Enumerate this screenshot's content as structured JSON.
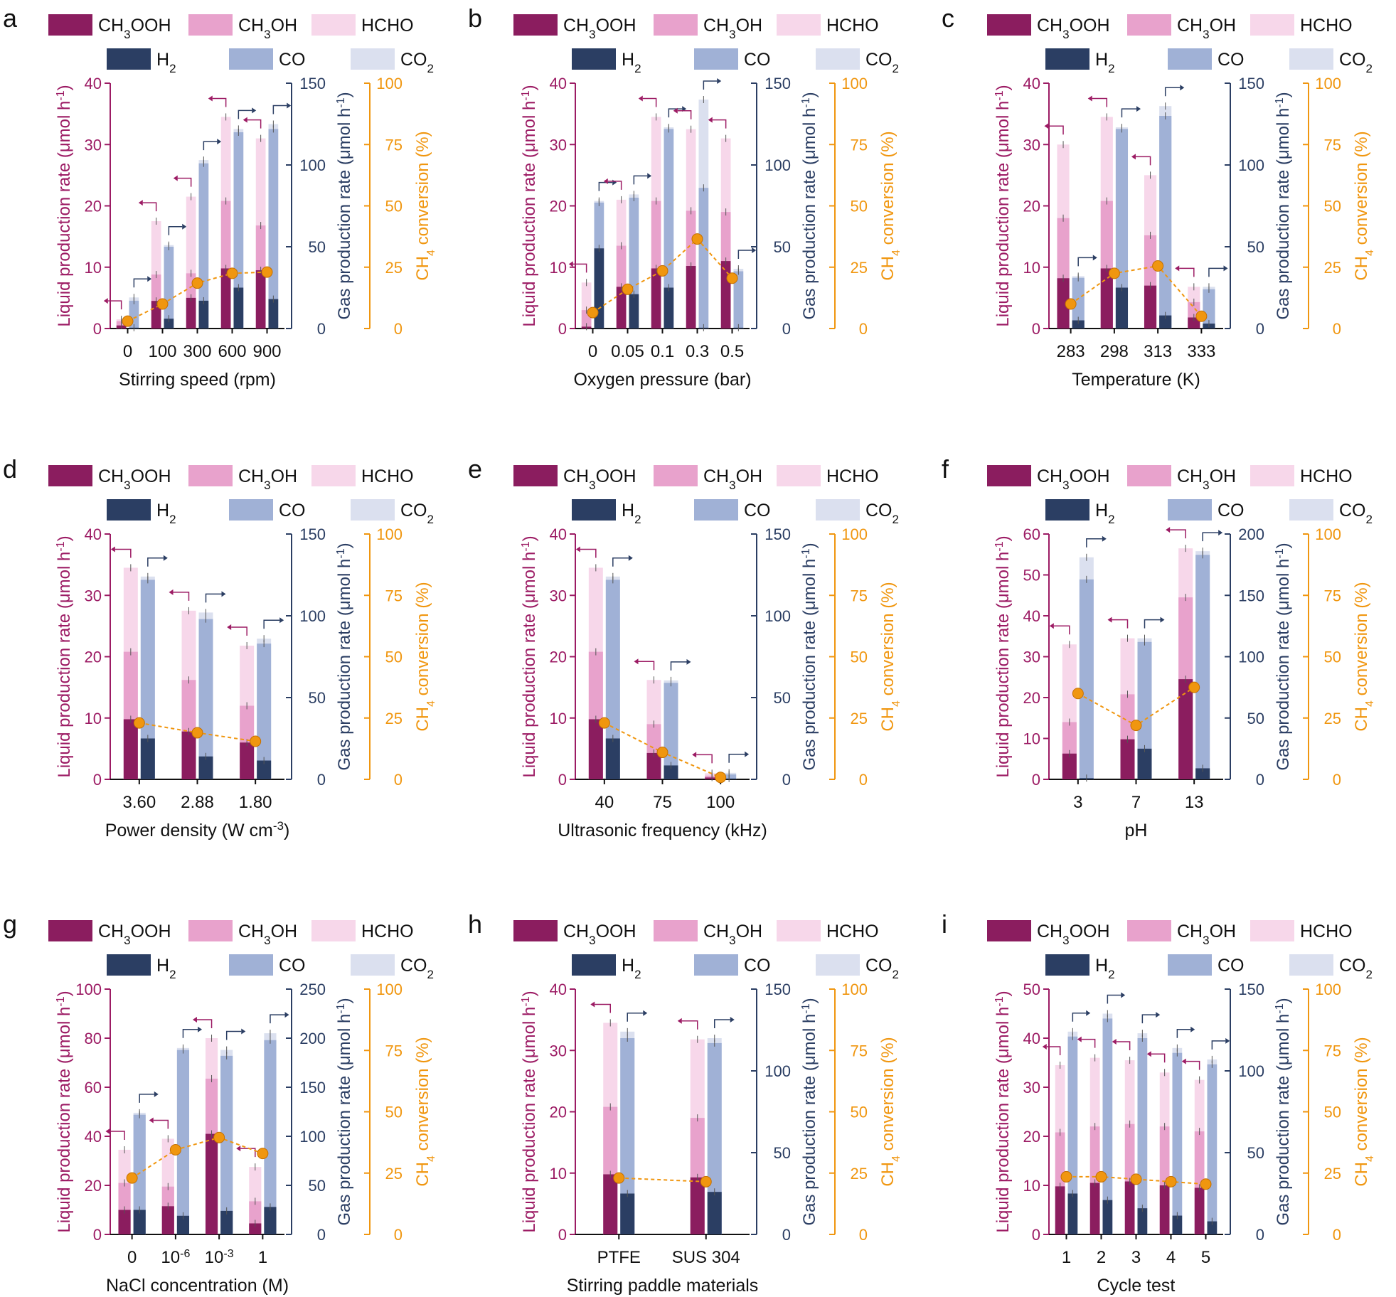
{
  "colors": {
    "ch3ooh": "#8b1d5f",
    "ch3oh": "#e8a2cc",
    "hcho": "#f7d7ea",
    "h2": "#2b3e63",
    "co": "#a0b1d6",
    "co2": "#dbe0ef",
    "liquid_axis": "#9c1b64",
    "gas_axis": "#2b3e63",
    "conv_axis": "#f0960f",
    "text": "#111111"
  },
  "legend": {
    "ch3ooh": "CH3OOH",
    "ch3oh": "CH3OH",
    "hcho": "HCHO",
    "h2": "H2",
    "co": "CO",
    "co2": "CO2"
  },
  "axis_labels": {
    "liquid": "Liquid production rate  (μmol h-1)",
    "gas": "Gas production rate  (μmol h-1)",
    "conversion": "CH4 conversion (%)"
  },
  "chart_data": [
    {
      "panel": "a",
      "type": "bar",
      "xlabel": "Stirring speed (rpm)",
      "categories": [
        "0",
        "100",
        "300",
        "600",
        "900"
      ],
      "liquid_ylim": [
        0,
        40
      ],
      "liquid_ticks": [
        0,
        10,
        20,
        30,
        40
      ],
      "gas_ylim": [
        0,
        150
      ],
      "gas_ticks": [
        0,
        50,
        100,
        150
      ],
      "conversion_ylim": [
        0,
        100
      ],
      "conversion_ticks": [
        0,
        25,
        50,
        75,
        100
      ],
      "CH3OOH": [
        0.5,
        4.5,
        5.0,
        9.8,
        9.5
      ],
      "CH3OH": [
        1.2,
        8.8,
        9.0,
        20.8,
        16.8
      ],
      "HCHO": [
        1.5,
        17.5,
        21.5,
        34.5,
        31.0
      ],
      "H2": [
        0.5,
        6.0,
        17.0,
        25.0,
        18.0
      ],
      "CO": [
        17.0,
        50.0,
        101.0,
        120.0,
        122.0
      ],
      "CO2": [
        19.0,
        51.0,
        103.0,
        122.0,
        125.0
      ],
      "conversion": [
        3.0,
        10.0,
        18.5,
        22.5,
        23.0
      ]
    },
    {
      "panel": "b",
      "type": "bar",
      "xlabel": "Oxygen pressure (bar)",
      "categories": [
        "0",
        "0.05",
        "0.1",
        "0.3",
        "0.5"
      ],
      "liquid_ylim": [
        0,
        40
      ],
      "liquid_ticks": [
        0,
        10,
        20,
        30,
        40
      ],
      "gas_ylim": [
        0,
        150
      ],
      "gas_ticks": [
        0,
        50,
        100,
        150
      ],
      "conversion_ylim": [
        0,
        100
      ],
      "conversion_ticks": [
        0,
        25,
        50,
        75,
        100
      ],
      "CH3OOH": [
        0.3,
        6.8,
        9.8,
        10.2,
        11.0
      ],
      "CH3OH": [
        3.0,
        13.5,
        20.8,
        19.2,
        19.0
      ],
      "HCHO": [
        7.5,
        21.0,
        34.5,
        32.5,
        31.0
      ],
      "H2": [
        49.0,
        21.0,
        25.0,
        0.5,
        0.5
      ],
      "CO": [
        77.0,
        80.0,
        122.0,
        86.0,
        35.0
      ],
      "CO2": [
        78.0,
        82.0,
        123.0,
        140.0,
        36.5
      ],
      "conversion": [
        6.5,
        16.0,
        23.5,
        36.5,
        20.5
      ]
    },
    {
      "panel": "c",
      "type": "bar",
      "xlabel": "Temperature (K)",
      "categories": [
        "283",
        "298",
        "313",
        "333"
      ],
      "liquid_ylim": [
        0,
        40
      ],
      "liquid_ticks": [
        0,
        10,
        20,
        30,
        40
      ],
      "gas_ylim": [
        0,
        150
      ],
      "gas_ticks": [
        0,
        50,
        100,
        150
      ],
      "conversion_ylim": [
        0,
        100
      ],
      "conversion_ticks": [
        0,
        25,
        50,
        75,
        100
      ],
      "CH3OOH": [
        8.2,
        9.8,
        7.0,
        1.8
      ],
      "CH3OH": [
        18.0,
        20.8,
        15.2,
        4.3
      ],
      "HCHO": [
        30.0,
        34.5,
        25.0,
        6.8
      ],
      "H2": [
        5.0,
        25.0,
        8.0,
        3.0
      ],
      "CO": [
        31.0,
        122.0,
        130.0,
        24.0
      ],
      "CO2": [
        32.0,
        123.0,
        136.0,
        25.5
      ],
      "conversion": [
        10.0,
        22.5,
        25.5,
        5.0
      ]
    },
    {
      "panel": "d",
      "type": "bar",
      "xlabel": "Power density  (W cm-3)",
      "categories": [
        "3.60",
        "2.88",
        "1.80"
      ],
      "liquid_ylim": [
        0,
        40
      ],
      "liquid_ticks": [
        0,
        10,
        20,
        30,
        40
      ],
      "gas_ylim": [
        0,
        150
      ],
      "gas_ticks": [
        0,
        50,
        100,
        150
      ],
      "conversion_ylim": [
        0,
        100
      ],
      "conversion_ticks": [
        0,
        25,
        50,
        75,
        100
      ],
      "CH3OOH": [
        9.8,
        7.8,
        6.0
      ],
      "CH3OH": [
        20.8,
        16.2,
        12.0
      ],
      "HCHO": [
        34.5,
        27.5,
        21.8
      ],
      "H2": [
        25.0,
        14.0,
        11.5
      ],
      "CO": [
        122.0,
        98.0,
        83.0
      ],
      "CO2": [
        124.0,
        102.0,
        86.0
      ],
      "conversion": [
        23.0,
        19.0,
        15.5
      ]
    },
    {
      "panel": "e",
      "type": "bar",
      "xlabel": "Ultrasonic frequency (kHz)",
      "categories": [
        "40",
        "75",
        "100"
      ],
      "liquid_ylim": [
        0,
        40
      ],
      "liquid_ticks": [
        0,
        10,
        20,
        30,
        40
      ],
      "gas_ylim": [
        0,
        150
      ],
      "gas_ticks": [
        0,
        50,
        100,
        150
      ],
      "conversion_ylim": [
        0,
        100
      ],
      "conversion_ticks": [
        0,
        25,
        50,
        75,
        100
      ],
      "CH3OOH": [
        9.8,
        4.3,
        0.3
      ],
      "CH3OH": [
        20.8,
        9.0,
        0.6
      ],
      "HCHO": [
        34.5,
        16.2,
        1.0
      ],
      "H2": [
        25.0,
        8.5,
        0.5
      ],
      "CO": [
        122.0,
        59.0,
        3.0
      ],
      "CO2": [
        124.0,
        60.5,
        4.0
      ],
      "conversion": [
        23.0,
        11.0,
        0.8
      ]
    },
    {
      "panel": "f",
      "type": "bar",
      "xlabel": "pH",
      "categories": [
        "3",
        "7",
        "13"
      ],
      "liquid_ylim": [
        0,
        60
      ],
      "liquid_ticks": [
        0,
        10,
        20,
        30,
        40,
        50,
        60
      ],
      "gas_ylim": [
        0,
        200
      ],
      "gas_ticks": [
        0,
        50,
        100,
        150,
        200
      ],
      "conversion_ylim": [
        0,
        100
      ],
      "conversion_ticks": [
        0,
        25,
        50,
        75,
        100
      ],
      "CH3OOH": [
        6.3,
        9.8,
        24.5
      ],
      "CH3OH": [
        14.0,
        20.8,
        44.5
      ],
      "HCHO": [
        33.0,
        34.5,
        56.5
      ],
      "H2": [
        1.0,
        25.0,
        9.0
      ],
      "CO": [
        163.0,
        112.0,
        183.0
      ],
      "CO2": [
        181.0,
        115.0,
        186.0
      ],
      "conversion": [
        35.0,
        22.0,
        37.5
      ]
    },
    {
      "panel": "g",
      "type": "bar",
      "xlabel": "NaCl concentration (M)",
      "categories": [
        "0",
        "10-6",
        "10-3",
        "1"
      ],
      "liquid_ylim": [
        0,
        100
      ],
      "liquid_ticks": [
        0,
        20,
        40,
        60,
        80,
        100
      ],
      "gas_ylim": [
        0,
        250
      ],
      "gas_ticks": [
        0,
        50,
        100,
        150,
        200,
        250
      ],
      "conversion_ylim": [
        0,
        100
      ],
      "conversion_ticks": [
        0,
        25,
        50,
        75,
        100
      ],
      "CH3OOH": [
        10.0,
        11.5,
        41.0,
        4.5
      ],
      "CH3OH": [
        21.0,
        19.5,
        63.5,
        13.5
      ],
      "HCHO": [
        34.5,
        39.0,
        80.0,
        27.5
      ],
      "H2": [
        25.0,
        19.0,
        24.0,
        28.0
      ],
      "CO": [
        122.0,
        188.0,
        182.0,
        198.0
      ],
      "CO2": [
        124.0,
        190.0,
        188.0,
        205.0
      ],
      "conversion": [
        23.0,
        34.5,
        39.5,
        33.0
      ]
    },
    {
      "panel": "h",
      "type": "bar",
      "xlabel": "Stirring paddle materials",
      "categories": [
        "PTFE",
        "SUS 304"
      ],
      "liquid_ylim": [
        0,
        40
      ],
      "liquid_ticks": [
        0,
        10,
        20,
        30,
        40
      ],
      "gas_ylim": [
        0,
        150
      ],
      "gas_ticks": [
        0,
        50,
        100,
        150
      ],
      "conversion_ylim": [
        0,
        100
      ],
      "conversion_ticks": [
        0,
        25,
        50,
        75,
        100
      ],
      "CH3OOH": [
        9.8,
        9.3
      ],
      "CH3OH": [
        20.8,
        19.0
      ],
      "HCHO": [
        34.5,
        31.8
      ],
      "H2": [
        25.0,
        26.0
      ],
      "CO": [
        120.0,
        117.0
      ],
      "CO2": [
        124.0,
        120.0
      ],
      "conversion": [
        23.0,
        21.5
      ]
    },
    {
      "panel": "i",
      "type": "bar",
      "xlabel": "Cycle test",
      "categories": [
        "1",
        "2",
        "3",
        "4",
        "5"
      ],
      "liquid_ylim": [
        0,
        50
      ],
      "liquid_ticks": [
        0,
        10,
        20,
        30,
        40,
        50
      ],
      "gas_ylim": [
        0,
        150
      ],
      "gas_ticks": [
        0,
        50,
        100,
        150
      ],
      "conversion_ylim": [
        0,
        100
      ],
      "conversion_ticks": [
        0,
        25,
        50,
        75,
        100
      ],
      "CH3OOH": [
        9.8,
        10.5,
        10.8,
        10.0,
        9.5
      ],
      "CH3OH": [
        20.8,
        22.0,
        22.5,
        22.0,
        21.0
      ],
      "HCHO": [
        34.5,
        36.0,
        35.5,
        33.0,
        31.5
      ],
      "H2": [
        25.0,
        21.0,
        16.0,
        11.5,
        8.0
      ],
      "CO": [
        121.0,
        132.0,
        120.0,
        111.0,
        104.0
      ],
      "CO2": [
        124.0,
        135.0,
        123.0,
        114.0,
        107.0
      ],
      "conversion": [
        23.5,
        23.5,
        22.5,
        21.5,
        20.5
      ]
    }
  ]
}
